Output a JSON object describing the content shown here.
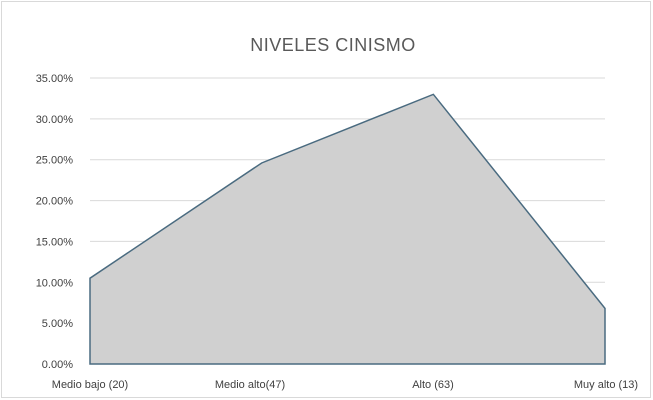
{
  "chart_data": {
    "type": "area",
    "title": "NIVELES CINISMO",
    "xlabel": "",
    "ylabel": "",
    "categories": [
      "Medio bajo (20)",
      "Medio alto(47)",
      "Alto (63)",
      "Muy alto (13)"
    ],
    "series": [
      {
        "values": [
          10.5,
          24.6,
          33.0,
          6.8
        ]
      }
    ],
    "yticks": [
      "0.00%",
      "5.00%",
      "10.00%",
      "15.00%",
      "20.00%",
      "25.00%",
      "30.00%",
      "35.00%"
    ],
    "ylim": [
      0,
      35
    ],
    "grid": true,
    "legend": "none",
    "colors": {
      "fill": "#d0d0d0",
      "line": "#4a6b80",
      "grid": "#d9d9d9"
    }
  }
}
